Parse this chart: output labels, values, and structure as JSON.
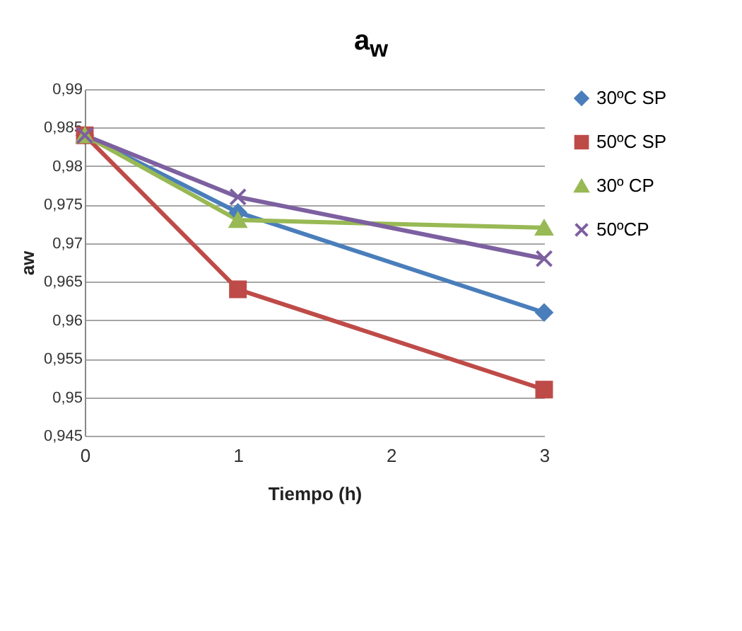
{
  "chart_data": {
    "type": "line",
    "title": "a$_{w}$",
    "xlabel": "Tiempo (h)",
    "ylabel": "aw",
    "x": [
      0,
      1,
      3
    ],
    "series": [
      {
        "name": "30ºC SP",
        "color": "#4a7ebb",
        "marker": "diamond",
        "values": [
          0.984,
          0.974,
          0.961
        ]
      },
      {
        "name": "50ºC SP",
        "color": "#be4b48",
        "marker": "square",
        "values": [
          0.984,
          0.964,
          0.951
        ]
      },
      {
        "name": "30º CP",
        "color": "#98b954",
        "marker": "triangle",
        "values": [
          0.984,
          0.973,
          0.972
        ]
      },
      {
        "name": "50ºCP",
        "color": "#7d60a0",
        "marker": "cross",
        "values": [
          0.984,
          0.976,
          0.968
        ]
      }
    ],
    "xlim": [
      0,
      3
    ],
    "xticks": [
      0,
      1,
      2,
      3
    ],
    "ylim": [
      0.945,
      0.99
    ],
    "yticks": [
      {
        "value": 0.945,
        "label": "0,945"
      },
      {
        "value": 0.95,
        "label": "0,95"
      },
      {
        "value": 0.955,
        "label": "0,955"
      },
      {
        "value": 0.96,
        "label": "0,96"
      },
      {
        "value": 0.965,
        "label": "0,965"
      },
      {
        "value": 0.97,
        "label": "0,97"
      },
      {
        "value": 0.975,
        "label": "0,975"
      },
      {
        "value": 0.98,
        "label": "0,98"
      },
      {
        "value": 0.985,
        "label": "0,985"
      },
      {
        "value": 0.99,
        "label": "0,99"
      }
    ],
    "grid": "y",
    "legend": "right"
  }
}
